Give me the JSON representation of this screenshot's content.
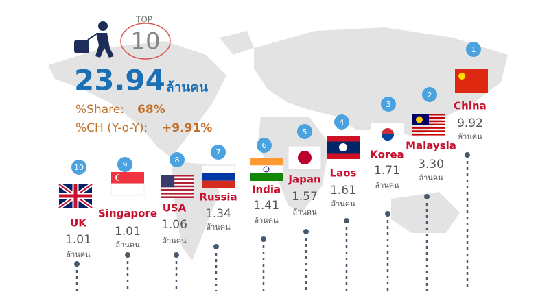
{
  "header": {
    "top_label": "TOP",
    "top_number": "10",
    "total": "23.94",
    "unit": "ล้านคน",
    "share_label": "%Share:",
    "share_value": "68%",
    "ch_label": "%CH (Y-o-Y):",
    "ch_value": "+9.91%"
  },
  "items": [
    {
      "rank": "1",
      "country": "China",
      "value": "9.92",
      "unit": "ล้านคน"
    },
    {
      "rank": "2",
      "country": "Malaysia",
      "value": "3.30",
      "unit": "ล้านคน"
    },
    {
      "rank": "3",
      "country": "Korea",
      "value": "1.71",
      "unit": "ล้านคน"
    },
    {
      "rank": "4",
      "country": "Laos",
      "value": "1.61",
      "unit": "ล้านคน"
    },
    {
      "rank": "5",
      "country": "Japan",
      "value": "1.57",
      "unit": "ล้านคน"
    },
    {
      "rank": "6",
      "country": "India",
      "value": "1.41",
      "unit": "ล้านคน"
    },
    {
      "rank": "7",
      "country": "Russia",
      "value": "1.34",
      "unit": "ล้านคน"
    },
    {
      "rank": "8",
      "country": "USA",
      "value": "1.06",
      "unit": "ล้านคน"
    },
    {
      "rank": "9",
      "country": "Singapore",
      "value": "1.01",
      "unit": "ล้านคน"
    },
    {
      "rank": "10",
      "country": "UK",
      "value": "1.01",
      "unit": "ล้านคน"
    }
  ]
}
